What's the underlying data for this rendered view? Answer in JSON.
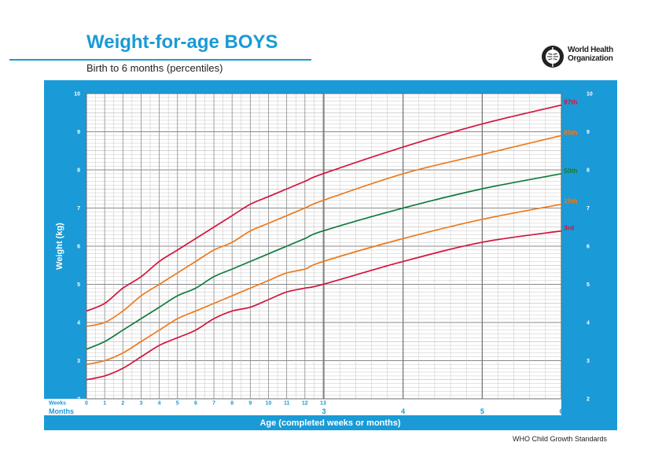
{
  "header": {
    "title": "Weight-for-age BOYS",
    "subtitle": "Birth to 6 months (percentiles)",
    "org_line1": "World Health",
    "org_line2": "Organization"
  },
  "footer": {
    "text": "WHO Child Growth Standards"
  },
  "colors": {
    "frame": "#1a9ad6",
    "p3": "#d2143c",
    "p15": "#ec7a1c",
    "p50": "#137a3e",
    "p85": "#ec7a1c",
    "p97": "#d2143c"
  },
  "chart_data": {
    "type": "line",
    "ylabel": "Weight (kg)",
    "xlabel": "Age (completed weeks or months)",
    "ylim": [
      2,
      10
    ],
    "xlim_months": [
      0,
      6
    ],
    "y_ticks": [
      2,
      3,
      4,
      5,
      6,
      7,
      8,
      9,
      10
    ],
    "row_label_weeks": "Weeks",
    "row_label_months": "Months",
    "week_ticks": [
      "0",
      "1",
      "2",
      "3",
      "4",
      "5",
      "6",
      "7",
      "8",
      "9",
      "10",
      "11",
      "12",
      "13"
    ],
    "month_ticks": [
      "3",
      "4",
      "5",
      "6"
    ],
    "grid": true,
    "x_weeks": [
      0,
      1,
      2,
      3,
      4,
      5,
      6,
      7,
      8,
      9,
      10,
      11,
      12,
      13,
      17.4,
      21.7,
      26.1
    ],
    "series": [
      {
        "name": "3rd",
        "color_key": "p3",
        "values": [
          2.5,
          2.6,
          2.8,
          3.1,
          3.4,
          3.6,
          3.8,
          4.1,
          4.3,
          4.4,
          4.6,
          4.8,
          4.9,
          5.0,
          5.6,
          6.1,
          6.4
        ]
      },
      {
        "name": "15th",
        "color_key": "p15",
        "values": [
          2.9,
          3.0,
          3.2,
          3.5,
          3.8,
          4.1,
          4.3,
          4.5,
          4.7,
          4.9,
          5.1,
          5.3,
          5.4,
          5.6,
          6.2,
          6.7,
          7.1
        ]
      },
      {
        "name": "50th",
        "color_key": "p50",
        "values": [
          3.3,
          3.5,
          3.8,
          4.1,
          4.4,
          4.7,
          4.9,
          5.2,
          5.4,
          5.6,
          5.8,
          6.0,
          6.2,
          6.4,
          7.0,
          7.5,
          7.9
        ]
      },
      {
        "name": "85th",
        "color_key": "p85",
        "values": [
          3.9,
          4.0,
          4.3,
          4.7,
          5.0,
          5.3,
          5.6,
          5.9,
          6.1,
          6.4,
          6.6,
          6.8,
          7.0,
          7.2,
          7.9,
          8.4,
          8.9
        ]
      },
      {
        "name": "97th",
        "color_key": "p97",
        "values": [
          4.3,
          4.5,
          4.9,
          5.2,
          5.6,
          5.9,
          6.2,
          6.5,
          6.8,
          7.1,
          7.3,
          7.5,
          7.7,
          7.9,
          8.6,
          9.2,
          9.7
        ]
      }
    ]
  }
}
